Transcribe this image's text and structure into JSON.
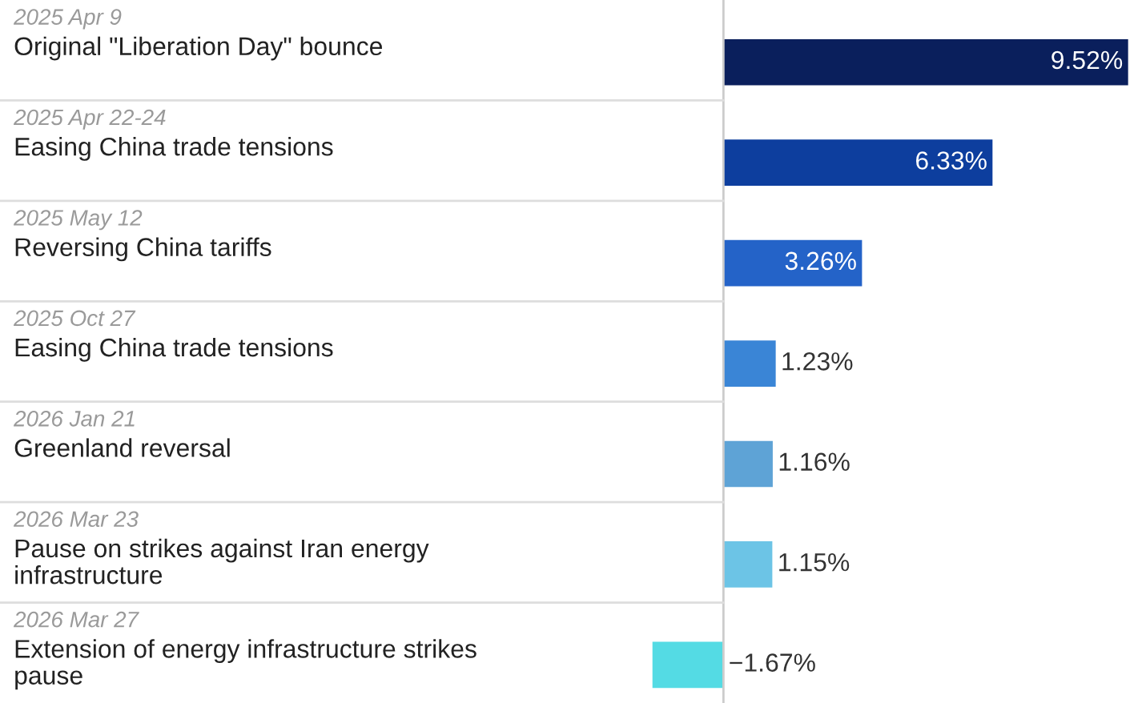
{
  "chart_data": {
    "type": "bar",
    "orientation": "horizontal",
    "categories": [
      "2025 Apr 9\nOriginal \"Liberation Day\" bounce",
      "2025 Apr 22-24\nEasing China trade tensions",
      "2025 May 12\nReversing China tariffs",
      "2025 Oct 27\nEasing China trade tensions",
      "2026 Jan 21\nGreenland reversal",
      "2026 Mar 23\nPause on strikes against Iran energy\ninfrastructure",
      "2026 Mar 27\nExtension of energy infrastructure strikes\npause"
    ],
    "values": [
      9.52,
      6.33,
      3.26,
      1.23,
      1.16,
      1.15,
      -1.67
    ],
    "colors": [
      "#0a1f5c",
      "#0d3e9e",
      "#2463c8",
      "#3a85d6",
      "#5ea3d6",
      "#6cc4e6",
      "#54dbe4"
    ],
    "value_labels": [
      "9.52%",
      "6.33%",
      "3.26%",
      "1.23%",
      "1.16%",
      "1.15%",
      "−1.67%"
    ]
  }
}
